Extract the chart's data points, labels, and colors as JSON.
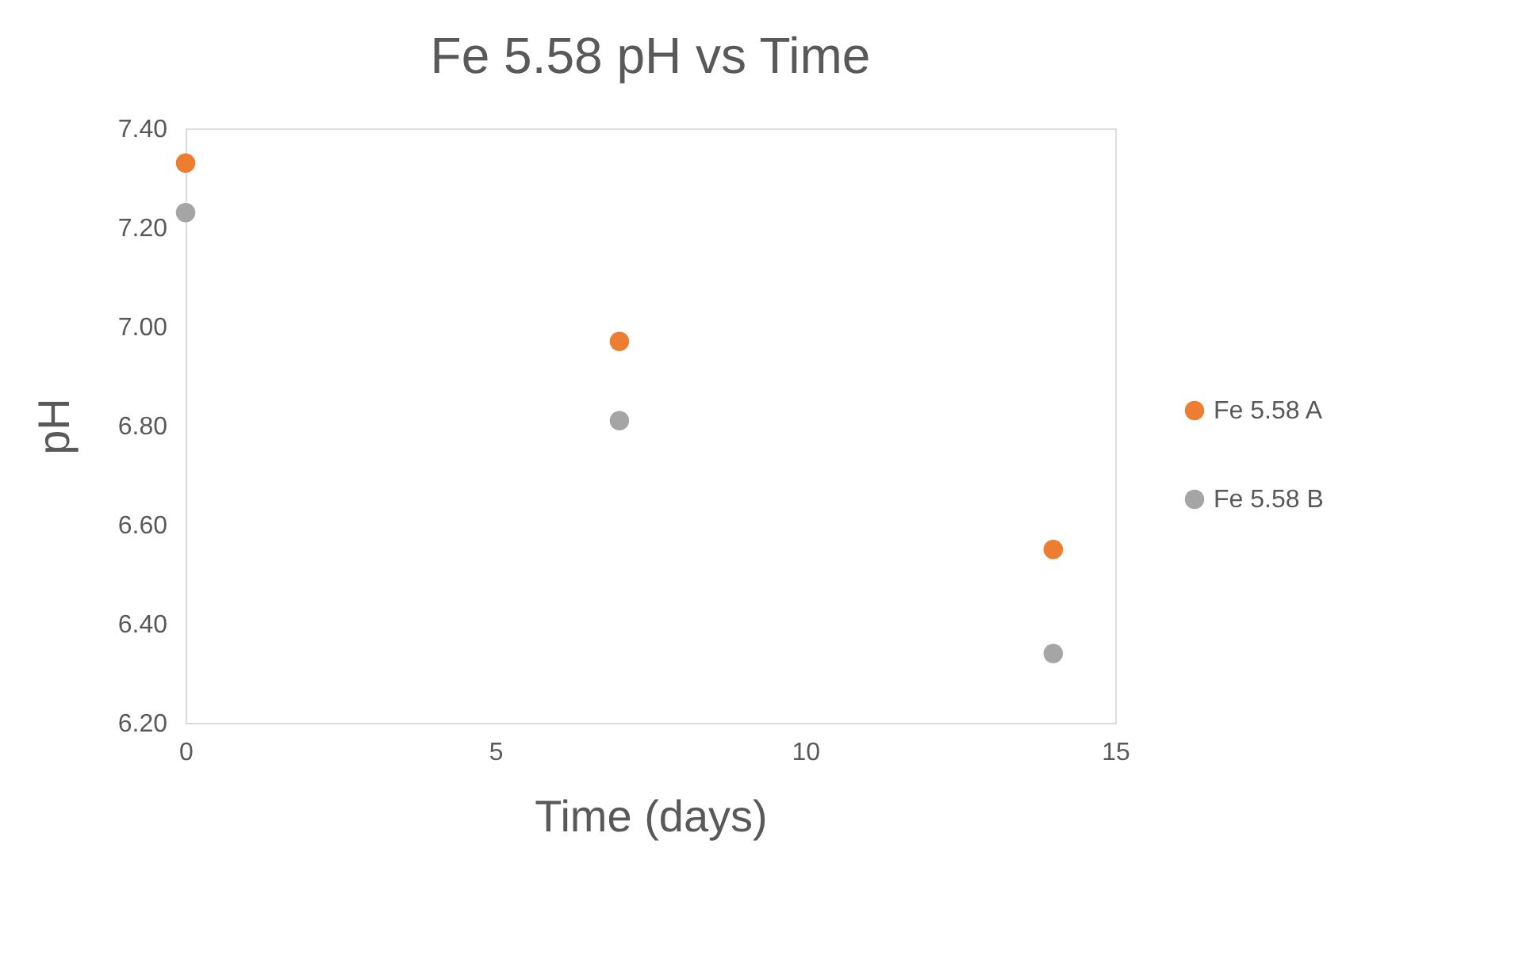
{
  "chart_data": {
    "type": "scatter",
    "title": "Fe 5.58 pH vs Time",
    "xlabel": "Time (days)",
    "ylabel": "pH",
    "x": [
      0,
      7,
      14
    ],
    "series": [
      {
        "name": "Fe 5.58 A",
        "color": "#ed7d31",
        "values": [
          7.33,
          6.97,
          6.55
        ]
      },
      {
        "name": "Fe 5.58 B",
        "color": "#a5a5a5",
        "values": [
          7.23,
          6.81,
          6.34
        ]
      }
    ],
    "xlim": [
      0,
      15
    ],
    "xticks": [
      0,
      5,
      10,
      15
    ],
    "ylim": [
      6.2,
      7.4
    ],
    "yticks": [
      {
        "value": 6.2,
        "label": "6.20"
      },
      {
        "value": 6.4,
        "label": "6.40"
      },
      {
        "value": 6.6,
        "label": "6.60"
      },
      {
        "value": 6.8,
        "label": "6.80"
      },
      {
        "value": 7.0,
        "label": "7.00"
      },
      {
        "value": 7.2,
        "label": "7.20"
      },
      {
        "value": 7.4,
        "label": "7.40"
      }
    ],
    "grid": false,
    "legend": "right",
    "marker": "circle"
  }
}
